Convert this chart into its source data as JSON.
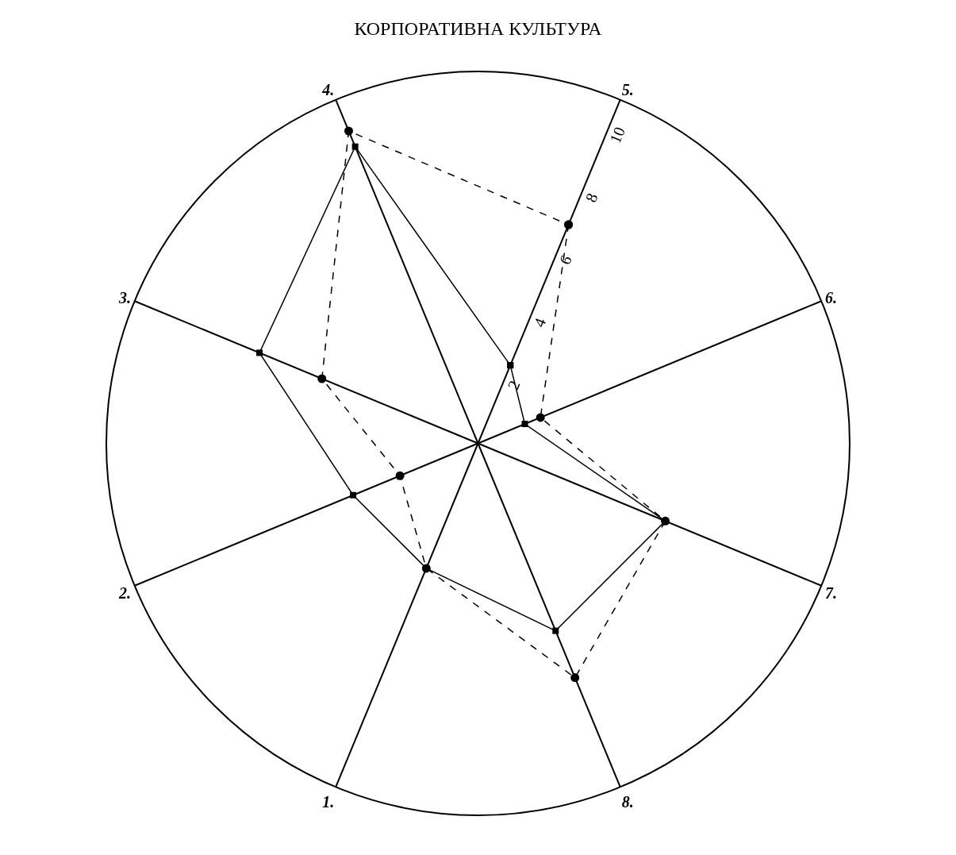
{
  "chart_data": {
    "type": "radar",
    "title": "КОРПОРАТИВНА КУЛЬТУРА",
    "categories": [
      "5.",
      "6.",
      "7.",
      "8.",
      "1.",
      "2.",
      "3.",
      "4."
    ],
    "series": [
      {
        "color": "#000000",
        "values": [
          2.5,
          1.5,
          6,
          6,
          4,
          4,
          7,
          9.5
        ],
        "marker": "square",
        "line_style": "solid"
      },
      {
        "color": "#000000",
        "values": [
          7,
          2,
          6,
          7.5,
          4,
          2.5,
          5,
          10
        ],
        "marker": "circle",
        "line_style": "dashed"
      }
    ],
    "ylim": [
      0,
      11
    ],
    "yticks": [
      2,
      4,
      6,
      8,
      10
    ],
    "grid": "x"
  }
}
